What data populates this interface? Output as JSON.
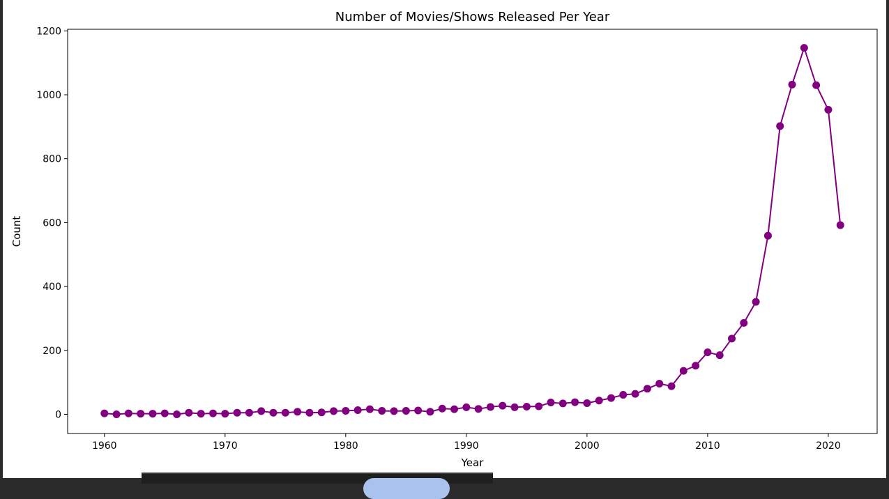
{
  "chart_data": {
    "type": "line",
    "title": "Number of Movies/Shows Released Per Year",
    "xlabel": "Year",
    "ylabel": "Count",
    "xlim": [
      1956.95,
      1924.05
    ],
    "ylim": [
      -60,
      1205
    ],
    "xticks": [
      1960,
      1970,
      1980,
      1990,
      2000,
      2010,
      2020
    ],
    "yticks": [
      0,
      200,
      400,
      600,
      800,
      1000,
      1200
    ],
    "grid": false,
    "marker": "circle",
    "color": "#800080",
    "series": [
      {
        "x": [
          1960,
          1961,
          1962,
          1963,
          1964,
          1965,
          1966,
          1967,
          1968,
          1969,
          1970,
          1971,
          1972,
          1973,
          1974,
          1975,
          1976,
          1977,
          1978,
          1979,
          1980,
          1981,
          1982,
          1983,
          1984,
          1985,
          1986,
          1987,
          1988,
          1989,
          1990,
          1991,
          1992,
          1993,
          1994,
          1995,
          1996,
          1997,
          1998,
          1999,
          2000,
          2001,
          2002,
          2003,
          2004,
          2005,
          2006,
          2007,
          2008,
          2009,
          2010,
          2011,
          2012,
          2013,
          2014,
          2015,
          2016,
          2017,
          2018,
          2019,
          2020,
          2021
        ],
        "y": [
          3,
          0,
          3,
          2,
          2,
          3,
          0,
          5,
          2,
          3,
          2,
          5,
          5,
          10,
          5,
          5,
          8,
          5,
          6,
          10,
          11,
          13,
          16,
          11,
          10,
          11,
          12,
          8,
          18,
          16,
          22,
          17,
          23,
          27,
          22,
          24,
          25,
          37,
          34,
          38,
          35,
          43,
          51,
          61,
          64,
          80,
          96,
          88,
          136,
          152,
          194,
          185,
          237,
          286,
          352,
          559,
          902,
          1032,
          1147,
          1030,
          953,
          592
        ]
      }
    ]
  }
}
